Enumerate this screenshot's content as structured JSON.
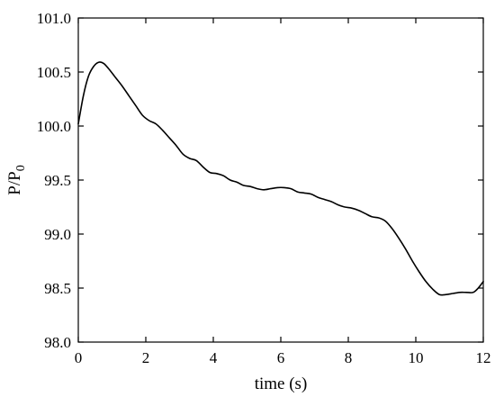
{
  "chart_data": {
    "type": "line",
    "title": "",
    "xlabel": "time (s)",
    "ylabel_main": "P/P",
    "ylabel_subscript": "0",
    "xlim": [
      0,
      12
    ],
    "ylim": [
      98.0,
      101.0
    ],
    "x_ticks": [
      "0",
      "2",
      "4",
      "6",
      "8",
      "10",
      "12"
    ],
    "y_ticks": [
      "98.0",
      "98.5",
      "99.0",
      "99.5",
      "100.0",
      "100.5",
      "101.0"
    ],
    "grid": false,
    "legend": "none",
    "line_color": "#000000",
    "series": [
      {
        "x": [
          0,
          0.15,
          0.3,
          0.45,
          0.6,
          0.75,
          0.9,
          1.1,
          1.3,
          1.5,
          1.7,
          1.9,
          2.1,
          2.3,
          2.5,
          2.7,
          2.9,
          3.1,
          3.3,
          3.5,
          3.7,
          3.9,
          4.1,
          4.3,
          4.5,
          4.7,
          4.9,
          5.1,
          5.3,
          5.5,
          5.7,
          5.9,
          6.1,
          6.3,
          6.5,
          6.7,
          6.9,
          7.1,
          7.3,
          7.5,
          7.7,
          7.9,
          8.1,
          8.3,
          8.5,
          8.7,
          8.9,
          9.1,
          9.3,
          9.5,
          9.7,
          9.9,
          10.1,
          10.3,
          10.5,
          10.7,
          10.9,
          11.1,
          11.3,
          11.5,
          11.7,
          11.85,
          12.0
        ],
        "y": [
          100.02,
          100.28,
          100.46,
          100.55,
          100.59,
          100.58,
          100.53,
          100.45,
          100.37,
          100.28,
          100.19,
          100.1,
          100.05,
          100.02,
          99.96,
          99.89,
          99.82,
          99.74,
          99.7,
          99.68,
          99.62,
          99.57,
          99.56,
          99.54,
          99.5,
          99.48,
          99.45,
          99.44,
          99.42,
          99.41,
          99.42,
          99.43,
          99.43,
          99.42,
          99.39,
          99.38,
          99.37,
          99.34,
          99.32,
          99.3,
          99.27,
          99.25,
          99.24,
          99.22,
          99.19,
          99.16,
          99.15,
          99.12,
          99.05,
          98.96,
          98.86,
          98.75,
          98.65,
          98.56,
          98.49,
          98.44,
          98.44,
          98.45,
          98.46,
          98.46,
          98.46,
          98.5,
          98.56
        ]
      }
    ]
  }
}
